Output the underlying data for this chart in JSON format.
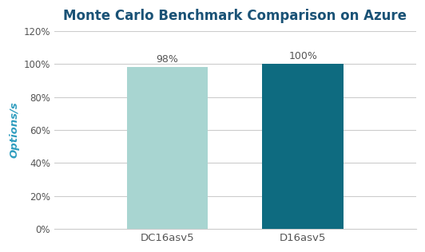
{
  "title": "Monte Carlo Benchmark Comparison on Azure",
  "categories": [
    "DC16asv5",
    "D16asv5"
  ],
  "values": [
    98,
    100
  ],
  "bar_colors": [
    "#a8d5d1",
    "#0e6b80"
  ],
  "value_labels": [
    "98%",
    "100%"
  ],
  "ylabel": "Options/s",
  "ylabel_color": "#2e9dbf",
  "title_color": "#1a5276",
  "title_fontsize": 12,
  "xlabel_fontsize": 9.5,
  "ylabel_fontsize": 9.5,
  "annotation_fontsize": 9,
  "ylim": [
    0,
    120
  ],
  "yticks": [
    0,
    20,
    40,
    60,
    80,
    100,
    120
  ],
  "ytick_labels": [
    "0%",
    "20%",
    "40%",
    "60%",
    "80%",
    "100%",
    "120%"
  ],
  "background_color": "#ffffff",
  "grid_color": "#cccccc",
  "bar_width": 0.18,
  "x_positions": [
    0.35,
    0.65
  ]
}
